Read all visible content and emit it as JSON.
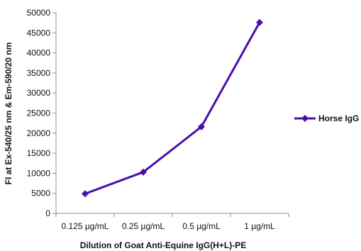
{
  "chart_data": {
    "type": "line",
    "title": "",
    "xlabel": "Dilution of Goat Anti-Equine IgG(H+L)-PE",
    "ylabel": "FI at Ex-540/25 nm & Em-590/20 nm",
    "categories": [
      "0.125 µg/mL",
      "0.25 µg/mL",
      "0.5 µg/mL",
      "1 µg/mL"
    ],
    "series": [
      {
        "name": "Horse IgG",
        "values": [
          4900,
          10300,
          21600,
          47600
        ],
        "color": "#4b0fa8",
        "marker": "diamond"
      }
    ],
    "ylim": [
      0,
      50000
    ],
    "yticks": [
      0,
      5000,
      10000,
      15000,
      20000,
      25000,
      30000,
      35000,
      40000,
      45000,
      50000
    ],
    "grid": false,
    "legend": "right"
  }
}
